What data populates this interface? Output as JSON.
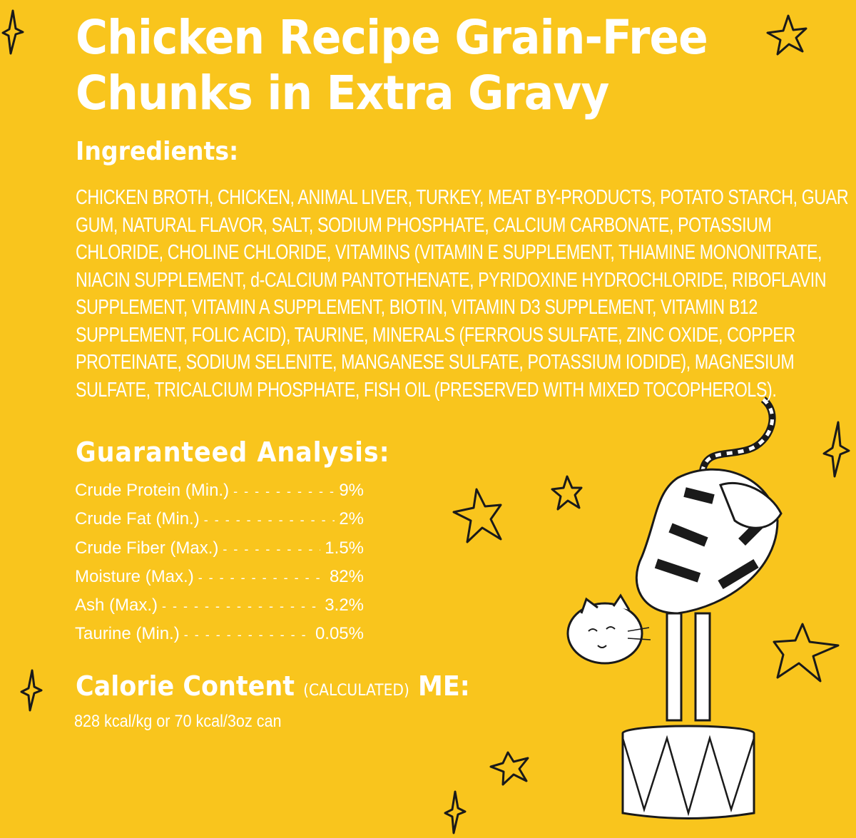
{
  "title": {
    "line1": "Chicken Recipe Grain-Free",
    "line2": "Chunks in Extra Gravy"
  },
  "ingredients": {
    "heading": "Ingredients:",
    "lines": [
      "CHICKEN BROTH, CHICKEN, ANIMAL LIVER, TURKEY, MEAT BY-PRODUCTS, POTATO STARCH, GUAR",
      "GUM, NATURAL FLAVOR, SALT, SODIUM PHOSPHATE, CALCIUM CARBONATE, POTASSIUM",
      "CHLORIDE, CHOLINE CHLORIDE, VITAMINS (VITAMIN E SUPPLEMENT, THIAMINE MONONITRATE,",
      "NIACIN SUPPLEMENT, d-CALCIUM PANTOTHENATE, PYRIDOXINE HYDROCHLORIDE, RIBOFLAVIN",
      "SUPPLEMENT, VITAMIN A SUPPLEMENT, BIOTIN, VITAMIN D3 SUPPLEMENT, VITAMIN B12",
      "SUPPLEMENT, FOLIC ACID), TAURINE, MINERALS (FERROUS SULFATE, ZINC OXIDE, COPPER",
      "PROTEINATE, SODIUM SELENITE, MANGANESE SULFATE, POTASSIUM IODIDE), MAGNESIUM",
      "SULFATE, TRICALCIUM PHOSPHATE, FISH OIL (PRESERVED WITH MIXED TOCOPHEROLS)."
    ]
  },
  "analysis": {
    "heading": "Guaranteed Analysis:",
    "rows": [
      {
        "label": "Crude Protein (Min.)",
        "value": "9%"
      },
      {
        "label": "Crude Fat (Min.)",
        "value": "2%"
      },
      {
        "label": "Crude Fiber (Max.)",
        "value": "1.5%"
      },
      {
        "label": "Moisture (Max.)",
        "value": "82%"
      },
      {
        "label": "Ash (Max.)",
        "value": "3.2%"
      },
      {
        "label": "Taurine (Min.)",
        "value": "0.05%"
      }
    ]
  },
  "calorie": {
    "heading": "Calorie Content",
    "qualifier": "(CALCULATED)",
    "suffix": "ME:",
    "value": "828 kcal/kg or 70 kcal/3oz can"
  },
  "colors": {
    "background": "#F9C51D",
    "text": "#FFFFFF",
    "ink": "#1A1A1A"
  },
  "illustration": "striped cat balancing on circus pedestal with hand-drawn stars"
}
